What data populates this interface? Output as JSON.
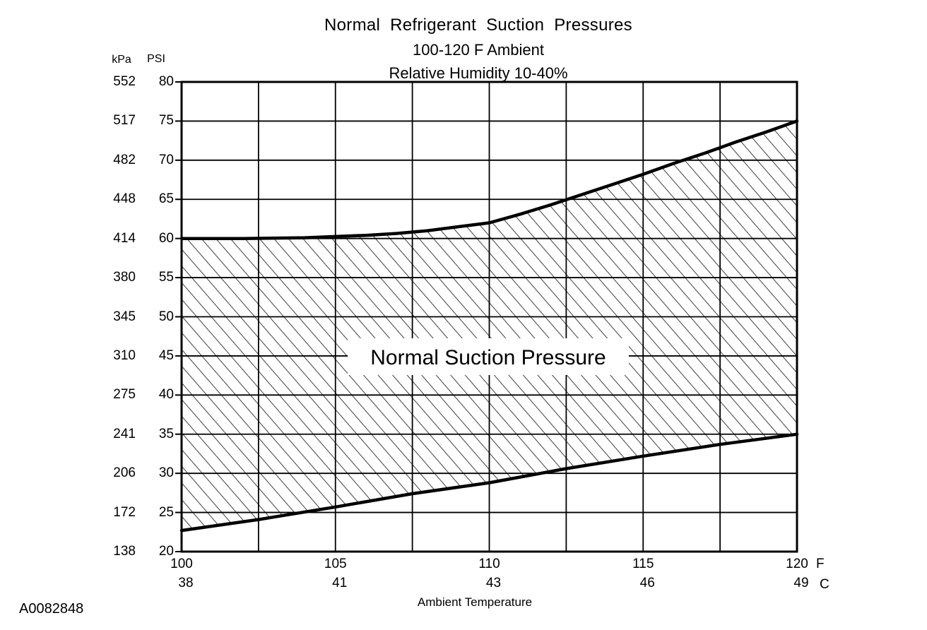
{
  "figure_id": "A0082848",
  "chart_data": {
    "type": "area",
    "title": "Normal Refrigerant Suction Pressures",
    "title_lines": [
      "Normal Refrigerant Suction Pressures",
      "100-120 F Ambient",
      "Relative Humidity 10-40%"
    ],
    "region_label": "Normal Suction Pressure",
    "xlabel": "Ambient Temperature",
    "y_axis_units": {
      "primary": "kPa",
      "secondary": "PSI"
    },
    "x_axis_units": {
      "fahrenheit": "F",
      "celsius": "C"
    },
    "x_ticks_f": [
      100,
      105,
      110,
      115,
      120
    ],
    "x_ticks_c": [
      38,
      41,
      43,
      46,
      49
    ],
    "y_ticks_psi": [
      80,
      75,
      70,
      65,
      60,
      55,
      50,
      45,
      40,
      35,
      30,
      25,
      20
    ],
    "y_ticks_kpa": [
      552,
      517,
      482,
      448,
      414,
      380,
      345,
      310,
      275,
      241,
      206,
      172,
      138
    ],
    "xlim_f": [
      100,
      120
    ],
    "ylim_psi": [
      20,
      80
    ],
    "x_grid_step_f": 2.5,
    "y_grid_step_psi": 5,
    "grid": true,
    "legend_position": "none",
    "band_fill": "diagonal-hatch",
    "line_color": "#000000",
    "background_color": "#ffffff",
    "series": [
      {
        "name": "upper_limit_psi",
        "x": [
          100,
          102,
          104,
          105,
          106,
          107,
          108,
          109,
          110,
          111,
          112,
          113,
          114,
          115,
          116,
          117,
          118,
          119,
          120
        ],
        "y": [
          60,
          60,
          60.1,
          60.25,
          60.4,
          60.65,
          61,
          61.5,
          62,
          63.1,
          64.3,
          65.6,
          66.9,
          68.2,
          69.6,
          70.9,
          72.3,
          73.6,
          75
        ]
      },
      {
        "name": "lower_limit_psi",
        "x": [
          100,
          102.5,
          105,
          107.5,
          110,
          112.5,
          115,
          117.5,
          120
        ],
        "y": [
          22.7,
          24.1,
          25.7,
          27.4,
          28.8,
          30.6,
          32.2,
          33.7,
          35
        ]
      }
    ]
  }
}
